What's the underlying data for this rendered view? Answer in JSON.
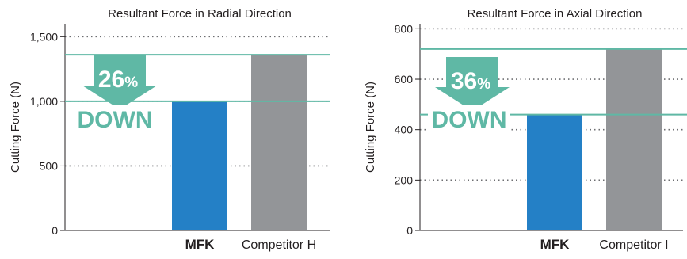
{
  "chart_data": [
    {
      "type": "bar",
      "title": "Resultant Force in Radial Direction",
      "ylabel": "Cutting Force (N)",
      "ylim": [
        0,
        1600
      ],
      "yticks": [
        0,
        500,
        1000,
        1500
      ],
      "ytick_labels": [
        "0",
        "500",
        "1,000",
        "1,500"
      ],
      "categories": [
        "MFK",
        "Competitor H"
      ],
      "values": [
        1000,
        1360
      ],
      "bar_colors": [
        "#2480c6",
        "#939598"
      ],
      "callout": {
        "percent": "26",
        "unit": "%",
        "word": "DOWN",
        "color": "#5fb8a5"
      },
      "grid": "dotted"
    },
    {
      "type": "bar",
      "title": "Resultant Force in Axial Direction",
      "ylabel": "Cutting Force (N)",
      "ylim": [
        0,
        820
      ],
      "yticks": [
        0,
        200,
        400,
        600,
        800
      ],
      "ytick_labels": [
        "0",
        "200",
        "400",
        "600",
        "800"
      ],
      "categories": [
        "MFK",
        "Competitor I"
      ],
      "values": [
        460,
        720
      ],
      "bar_colors": [
        "#2480c6",
        "#939598"
      ],
      "callout": {
        "percent": "36",
        "unit": "%",
        "word": "DOWN",
        "color": "#5fb8a5"
      },
      "grid": "dotted"
    }
  ]
}
